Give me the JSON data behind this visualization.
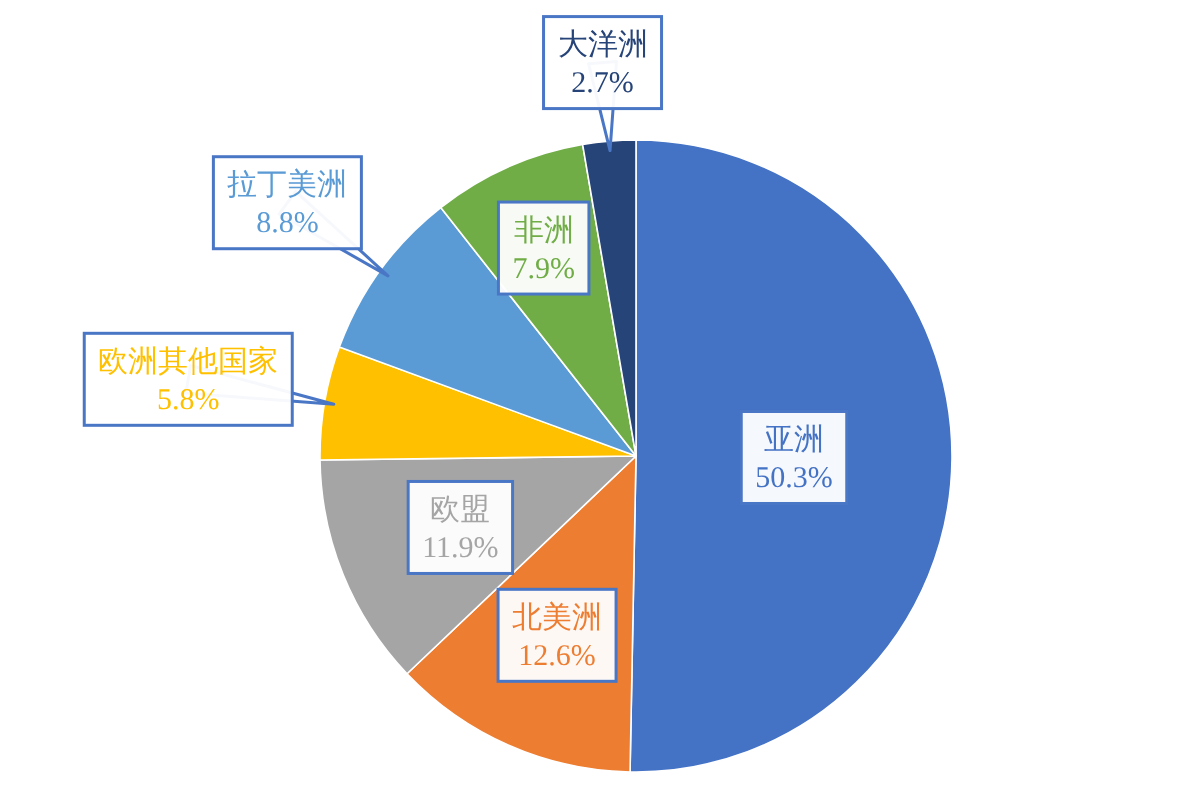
{
  "chart_data": {
    "type": "pie",
    "categories": [
      "亚洲",
      "北美洲",
      "欧盟",
      "欧洲其他国家",
      "拉丁美洲",
      "非洲",
      "大洋洲"
    ],
    "values": [
      50.3,
      12.6,
      11.9,
      5.8,
      8.8,
      7.9,
      2.7
    ],
    "value_labels": [
      "50.3%",
      "12.6%",
      "11.9%",
      "5.8%",
      "8.8%",
      "7.9%",
      "2.7%"
    ],
    "colors": [
      "#4472c4",
      "#ed7d31",
      "#a5a5a5",
      "#ffc000",
      "#5b9bd5",
      "#70ad47",
      "#264478"
    ]
  }
}
